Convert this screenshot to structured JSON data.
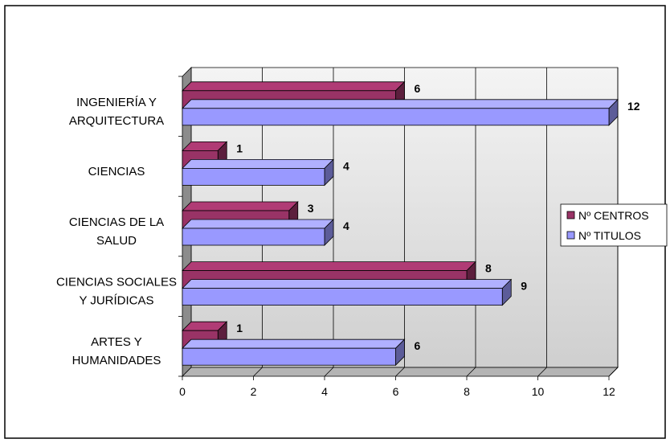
{
  "chart_data": {
    "type": "bar",
    "orientation": "horizontal",
    "categories": [
      [
        "INGENIERÍA Y",
        "ARQUITECTURA"
      ],
      [
        "CIENCIAS"
      ],
      [
        "CIENCIAS DE LA",
        "SALUD"
      ],
      [
        "CIENCIAS SOCIALES",
        "Y JURÍDICAS"
      ],
      [
        "ARTES Y",
        "HUMANIDADES"
      ]
    ],
    "series": [
      {
        "name": "Nº CENTROS",
        "values": [
          6,
          1,
          3,
          8,
          1
        ],
        "color": "#993366"
      },
      {
        "name": "Nº TITULOS",
        "values": [
          12,
          4,
          4,
          9,
          6
        ],
        "color": "#9999FF"
      }
    ],
    "xlim": [
      0,
      12
    ],
    "xticks": [
      0,
      2,
      4,
      6,
      8,
      10,
      12
    ],
    "grid": true,
    "legend": "right",
    "title": "",
    "xlabel": "",
    "ylabel": ""
  }
}
